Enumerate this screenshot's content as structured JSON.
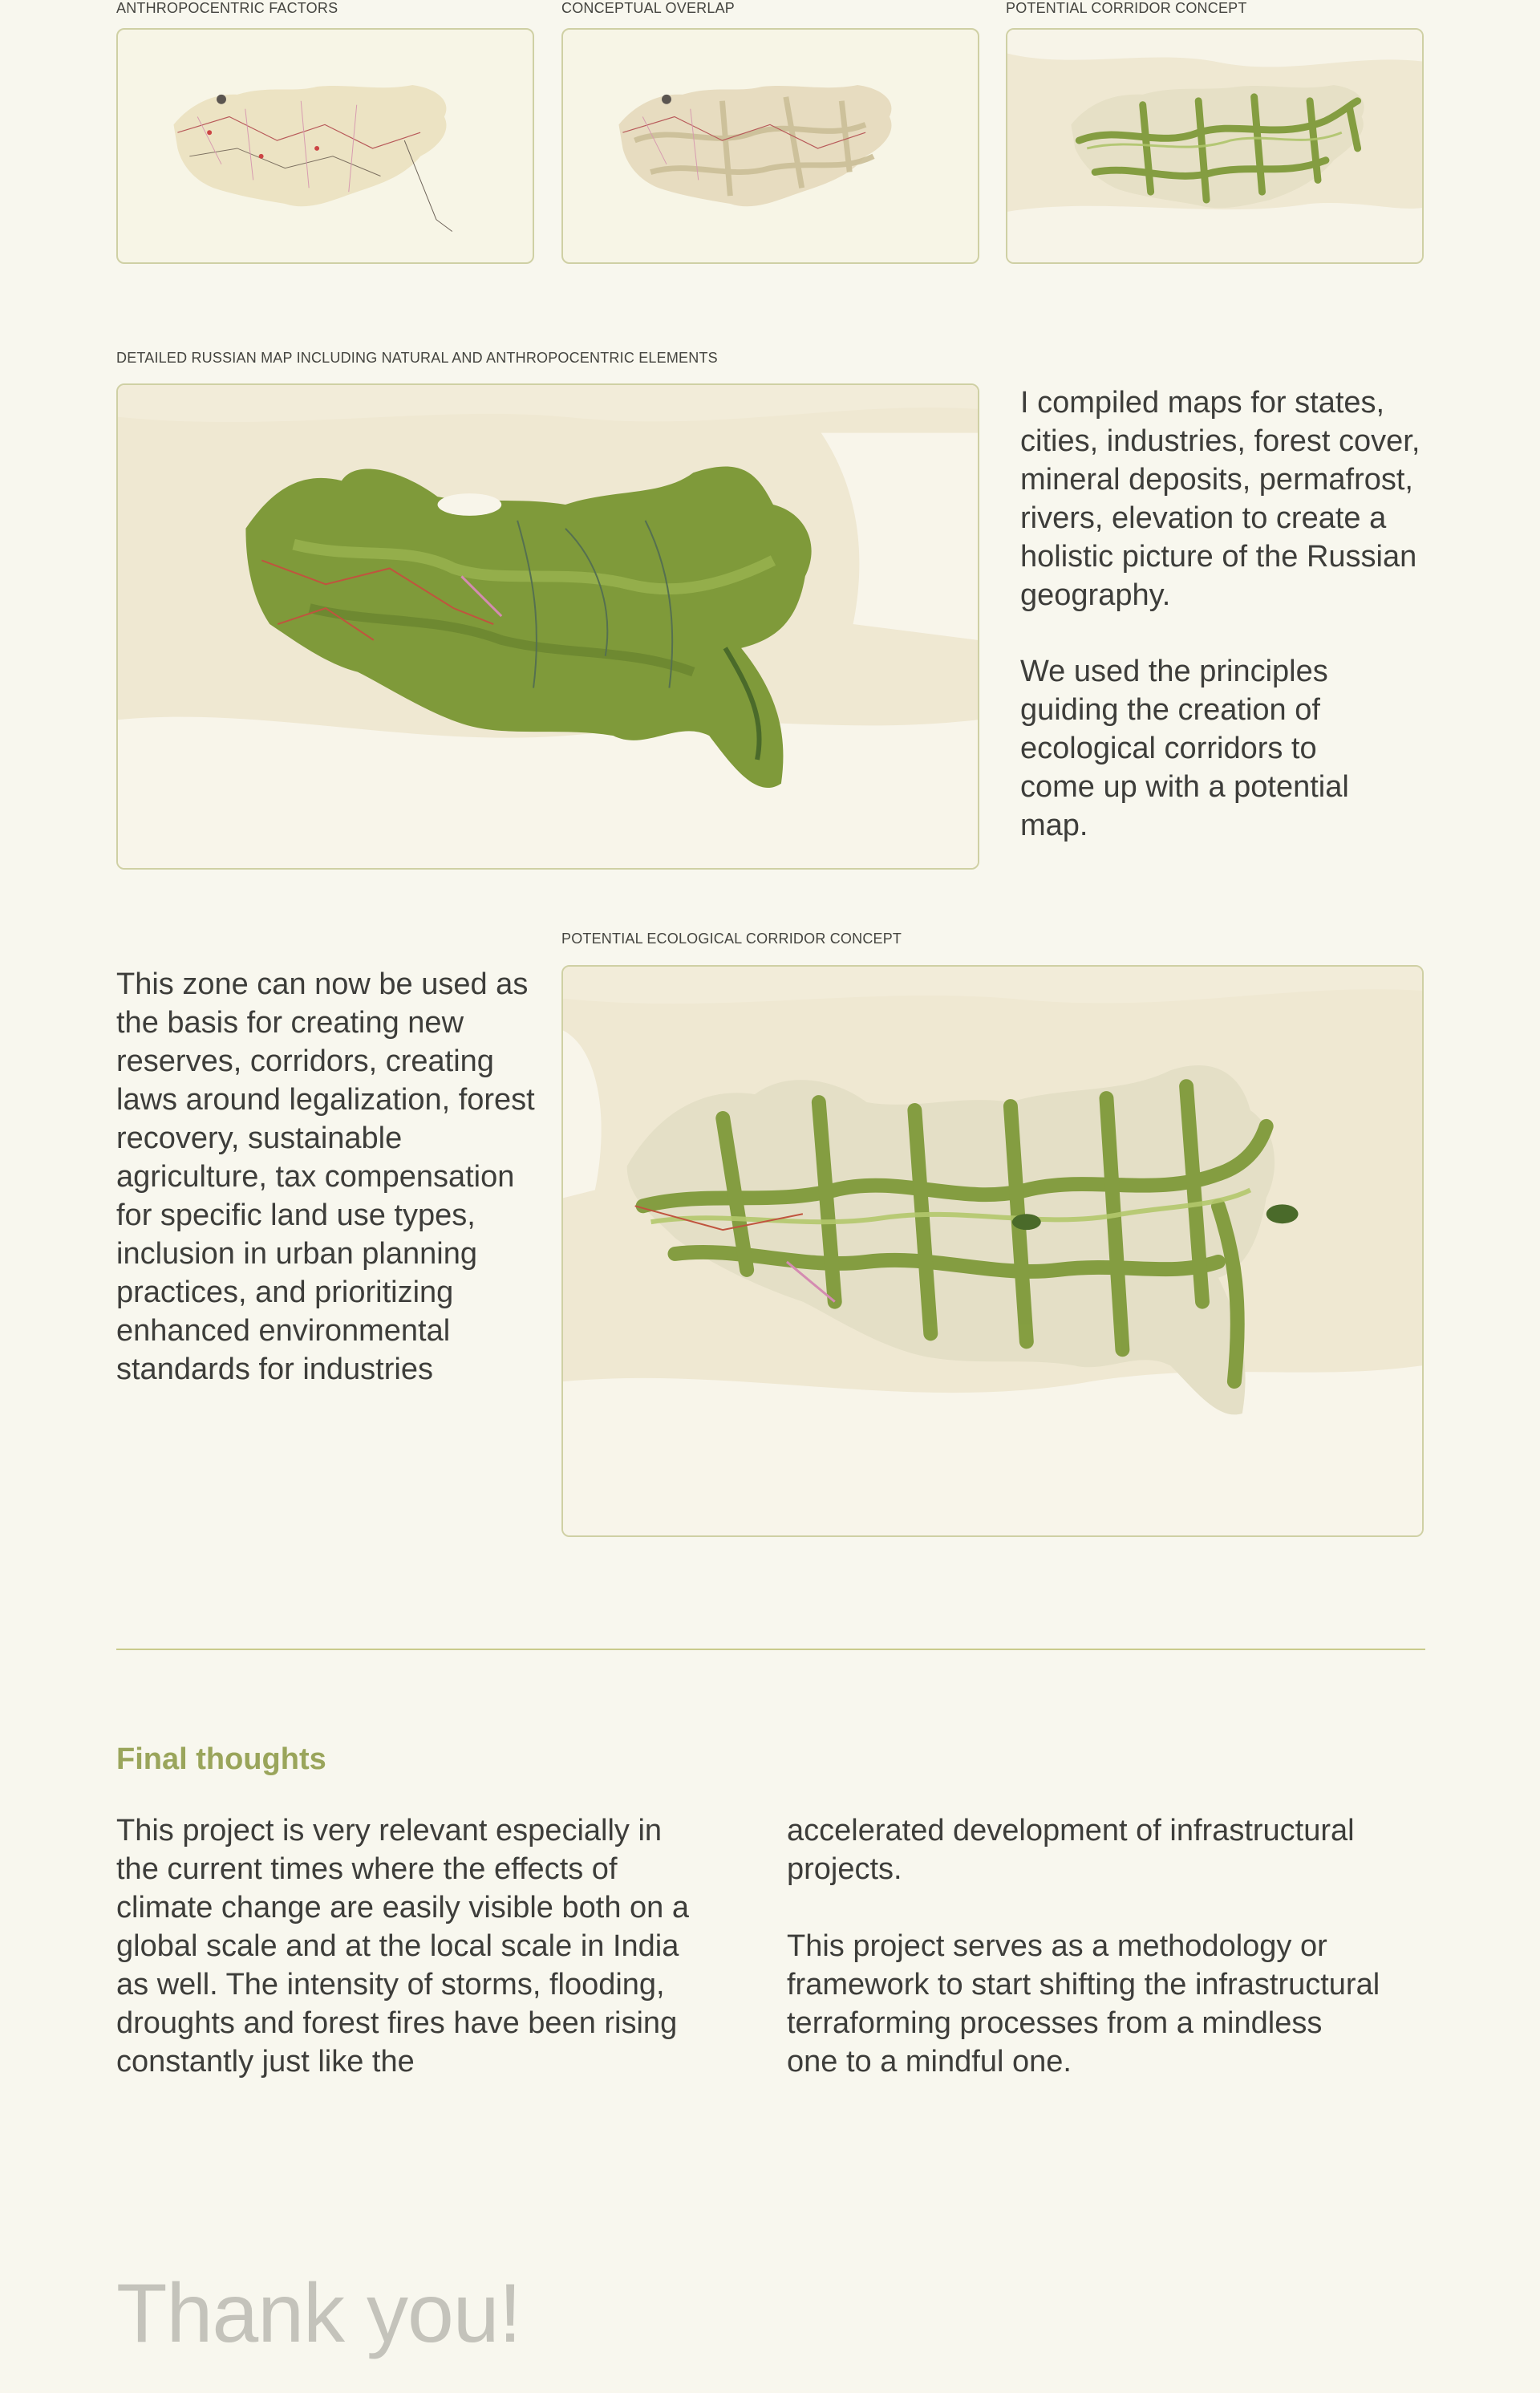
{
  "top_row": [
    {
      "caption": "ANTHROPOCENTRIC FACTORS",
      "image": "russia-anthropocentric-factors-map"
    },
    {
      "caption": "CONCEPTUAL OVERLAP",
      "image": "russia-conceptual-overlap-map"
    },
    {
      "caption": "POTENTIAL CORRIDOR CONCEPT",
      "image": "russia-potential-corridor-map"
    }
  ],
  "detailed": {
    "caption": "DETAILED RUSSIAN MAP INCLUDING NATURAL AND ANTHROPOCENTRIC ELEMENTS",
    "image": "russia-detailed-map",
    "text_1": "I compiled maps for states, cities, industries, forest cover, mineral deposits, permafrost, rivers, elevation to create a holistic picture of the Russian geography.",
    "text_2": "We used the principles guiding the creation of ecological corridors to come up with a potential map."
  },
  "ecological": {
    "caption": "POTENTIAL ECOLOGICAL CORRIDOR CONCEPT",
    "image": "russia-ecological-corridor-map",
    "text": "This zone can now be used as the basis for creating new reserves, corridors, creating laws around legalization, forest recovery, sustainable agriculture, tax compensation for specific land use types, inclusion in urban planning practices, and prioritizing enhanced environmental standards for industries"
  },
  "final": {
    "heading": "Final thoughts",
    "col_left": "This project is very relevant especially in the current times where the effects of climate change are easily visible both on a global scale and at the local scale in India as well. The intensity of storms, flooding, droughts and  forest fires have been rising constantly just like the",
    "col_right_1": "accelerated development of infrastructural projects.",
    "col_right_2": "This project serves as a methodology or framework to start shifting the infrastructural terraforming processes from a mindless one to a mindful one."
  },
  "closing": "Thank you!",
  "colors": {
    "background": "#f8f7ee",
    "accent": "#9aa55b",
    "frame_border": "#cfd0a4",
    "map_green": "#7f9a3a"
  }
}
